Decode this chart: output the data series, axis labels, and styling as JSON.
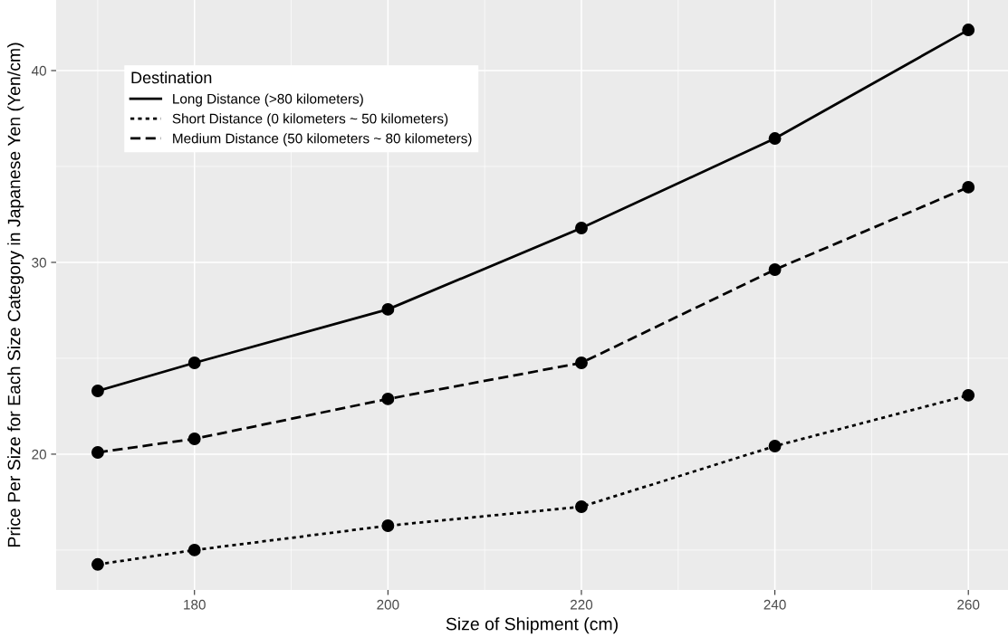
{
  "chart_data": {
    "type": "line",
    "xlabel": "Size of Shipment (cm)",
    "ylabel": "Price Per Size for Each Size Category in Japanese Yen (Yen/cm)",
    "legend_title": "Destination",
    "x": [
      170,
      180,
      200,
      220,
      240,
      260
    ],
    "series": [
      {
        "name": "Long Distance (>80 kilometers)",
        "color": "#000000",
        "line_style": "solid",
        "values": [
          23.3,
          24.76,
          27.55,
          31.79,
          36.46,
          42.12
        ]
      },
      {
        "name": "Short Distance (0 kilometers ~ 50 kilometers)",
        "color": "#000000",
        "line_style": "dotted",
        "values": [
          14.25,
          15.0,
          16.27,
          17.26,
          20.42,
          23.07
        ]
      },
      {
        "name": "Medium Distance (50 kilometers ~ 80 kilometers)",
        "color": "#000000",
        "line_style": "dashed",
        "values": [
          20.09,
          20.8,
          22.88,
          24.76,
          29.62,
          33.92
        ]
      }
    ],
    "xlim": [
      165.7,
      264.1
    ],
    "xticks": [
      180,
      200,
      220,
      240,
      260
    ],
    "ylim": [
      12.92,
      43.68
    ],
    "yticks": [
      20,
      30,
      40
    ],
    "grid": true,
    "legend": "top left",
    "marker": "circle"
  }
}
